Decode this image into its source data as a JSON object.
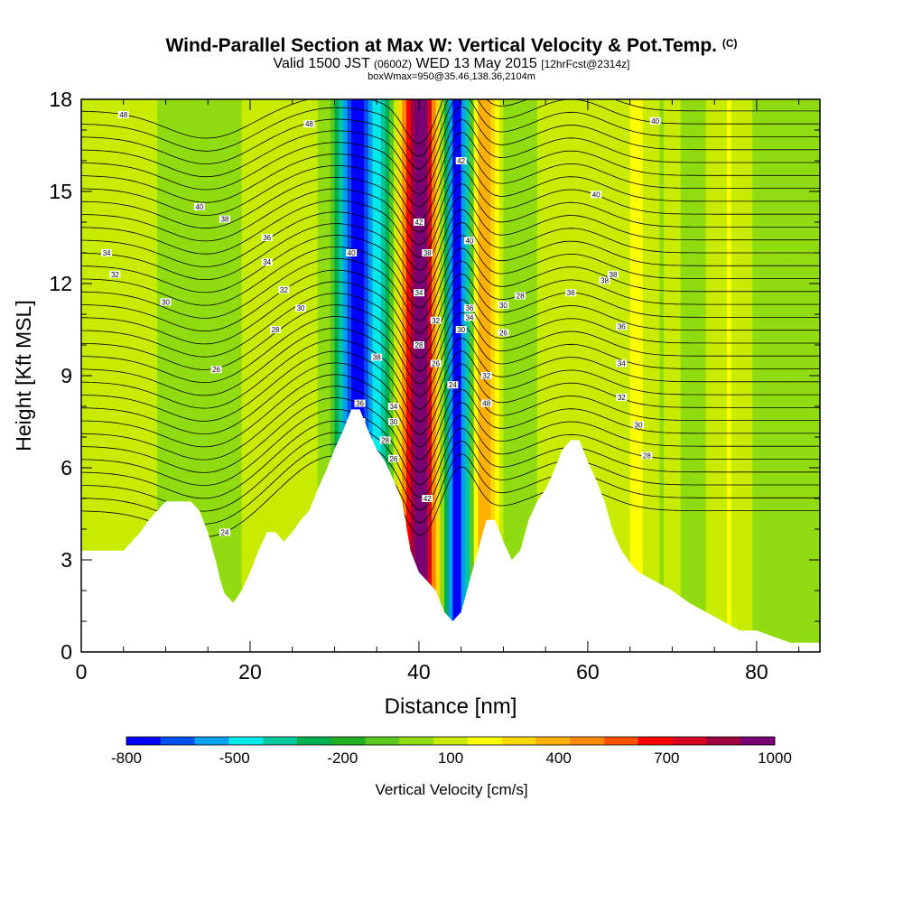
{
  "title": {
    "main": "Wind-Parallel Section at Max W: Vertical Velocity & Pot.Temp.",
    "copyright": "(C)",
    "valid_prefix": "Valid 1500 JST",
    "valid_utc": "(0600Z)",
    "valid_date": "WED 13 May 2015",
    "forecast": "[12hrFcst@2314z]",
    "box_info": "boxWmax=950@35.46,138.36,2104m"
  },
  "chart_data": {
    "type": "heatmap",
    "xlabel": "Distance [nm]",
    "ylabel": "Height [Kft MSL]",
    "xlim": [
      0,
      87.5
    ],
    "ylim": [
      0,
      18
    ],
    "x_ticks": [
      "0",
      "20",
      "40",
      "60",
      "80"
    ],
    "y_ticks": [
      "0",
      "3",
      "6",
      "9",
      "12",
      "15",
      "18"
    ],
    "fill_variable": "Vertical Velocity [cm/s]",
    "colorbar": {
      "label": "Vertical Velocity [cm/s]",
      "tick_labels": [
        "-800",
        "-500",
        "-200",
        "100",
        "400",
        "700",
        "1000"
      ],
      "colors": [
        "#0000ff",
        "#0050f0",
        "#00a0f0",
        "#00e8e8",
        "#00c8a0",
        "#00b050",
        "#20b020",
        "#5cc820",
        "#90dc10",
        "#c8ec00",
        "#ffff00",
        "#ffd800",
        "#ffb000",
        "#ff8800",
        "#ff5000",
        "#ff0000",
        "#d80020",
        "#a00040",
        "#780070"
      ]
    },
    "terrain_profile": [
      [
        0,
        3.3
      ],
      [
        5,
        3.3
      ],
      [
        6,
        3.6
      ],
      [
        7,
        3.9
      ],
      [
        8,
        4.3
      ],
      [
        9,
        4.6
      ],
      [
        10,
        4.9
      ],
      [
        13,
        4.9
      ],
      [
        14,
        4.6
      ],
      [
        15,
        3.9
      ],
      [
        16,
        2.9
      ],
      [
        16.5,
        2.3
      ],
      [
        17,
        1.9
      ],
      [
        18,
        1.6
      ],
      [
        19,
        2.0
      ],
      [
        20,
        2.6
      ],
      [
        21,
        3.3
      ],
      [
        22,
        3.9
      ],
      [
        23,
        3.9
      ],
      [
        24,
        3.6
      ],
      [
        25,
        3.9
      ],
      [
        26,
        4.3
      ],
      [
        27,
        4.6
      ],
      [
        28,
        5.3
      ],
      [
        29,
        5.9
      ],
      [
        30,
        6.6
      ],
      [
        31,
        7.2
      ],
      [
        32,
        7.9
      ],
      [
        33,
        7.9
      ],
      [
        34,
        7.2
      ],
      [
        35,
        6.6
      ],
      [
        36,
        6.2
      ],
      [
        37,
        5.6
      ],
      [
        38,
        4.9
      ],
      [
        39,
        3.3
      ],
      [
        40,
        2.6
      ],
      [
        41,
        2.3
      ],
      [
        42,
        2.0
      ],
      [
        43,
        1.3
      ],
      [
        44,
        1.0
      ],
      [
        45,
        1.3
      ],
      [
        46,
        2.3
      ],
      [
        47,
        3.3
      ],
      [
        48,
        4.3
      ],
      [
        49,
        4.3
      ],
      [
        50,
        3.6
      ],
      [
        51,
        3.0
      ],
      [
        52,
        3.3
      ],
      [
        53,
        4.3
      ],
      [
        54,
        4.9
      ],
      [
        55,
        5.3
      ],
      [
        56,
        5.9
      ],
      [
        57,
        6.6
      ],
      [
        58,
        6.9
      ],
      [
        59,
        6.9
      ],
      [
        60,
        6.2
      ],
      [
        61,
        5.6
      ],
      [
        62,
        4.9
      ],
      [
        63,
        3.9
      ],
      [
        64,
        3.3
      ],
      [
        65,
        2.9
      ],
      [
        66,
        2.6
      ],
      [
        68,
        2.3
      ],
      [
        70,
        2.0
      ],
      [
        72,
        1.6
      ],
      [
        74,
        1.3
      ],
      [
        76,
        1.0
      ],
      [
        78,
        0.7
      ],
      [
        80,
        0.7
      ],
      [
        82,
        0.5
      ],
      [
        84,
        0.3
      ],
      [
        87.5,
        0.3
      ]
    ],
    "vertical_velocity_bands": [
      {
        "x_center": 32.5,
        "x_width": 3.0,
        "value_cm_s": -700
      },
      {
        "x_center": 35.5,
        "x_width": 2.5,
        "value_cm_s": -350
      },
      {
        "x_center": 40.0,
        "x_width": 3.0,
        "value_cm_s": 950
      },
      {
        "x_center": 44.5,
        "x_width": 2.5,
        "value_cm_s": -750
      },
      {
        "x_center": 47.5,
        "x_width": 2.5,
        "value_cm_s": 450
      },
      {
        "x_center": 66.0,
        "x_width": 3.0,
        "value_cm_s": 250
      }
    ],
    "pot_temp_contour_labels": [
      "48",
      "48",
      "40",
      "38",
      "36",
      "34",
      "34",
      "32",
      "32",
      "30",
      "30",
      "28",
      "26",
      "24",
      "40",
      "38",
      "36",
      "34",
      "32",
      "30",
      "28",
      "26",
      "42",
      "42",
      "40",
      "38",
      "36",
      "34",
      "32",
      "30",
      "28",
      "26",
      "24",
      "42",
      "40",
      "38",
      "36",
      "34",
      "32",
      "30",
      "28",
      "26",
      "48",
      "40",
      "38",
      "36",
      "34",
      "32",
      "30",
      "28"
    ]
  }
}
